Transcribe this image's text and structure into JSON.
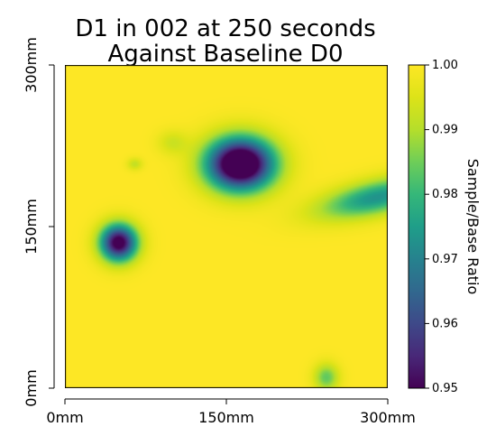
{
  "chart_data": {
    "type": "heatmap",
    "title": "D1 in 002 at 250 seconds",
    "subtitle": "Against Baseline D0",
    "xlabel": "",
    "ylabel": "",
    "x_ticks": [
      "0mm",
      "150mm",
      "300mm"
    ],
    "y_ticks": [
      "0mm",
      "150mm",
      "300mm"
    ],
    "x_tick_values": [
      0,
      150,
      300
    ],
    "y_tick_values": [
      0,
      150,
      300
    ],
    "xlim": [
      0,
      300
    ],
    "ylim": [
      0,
      300
    ],
    "colorbar": {
      "label": "Sample/Base Ratio",
      "min": 0.95,
      "max": 1.0,
      "ticks": [
        "0.95",
        "0.96",
        "0.97",
        "0.98",
        "0.99",
        "1.00"
      ],
      "tick_values": [
        0.95,
        0.96,
        0.97,
        0.98,
        0.99,
        1.0
      ],
      "colormap": "viridis"
    },
    "background_value": 1.0,
    "anomalies": [
      {
        "name": "upper-center-low",
        "x_mm": 163,
        "y_mm": 208,
        "min_value": 0.951
      },
      {
        "name": "left-low",
        "x_mm": 50,
        "y_mm": 135,
        "min_value": 0.96
      },
      {
        "name": "right-edge-band",
        "x_mm": 290,
        "y_mm": 177,
        "min_value": 0.98
      },
      {
        "name": "bottom-spot",
        "x_mm": 243,
        "y_mm": 10,
        "min_value": 0.988
      },
      {
        "name": "small-left-spot",
        "x_mm": 65,
        "y_mm": 208,
        "min_value": 0.994
      },
      {
        "name": "faint-upper-left",
        "x_mm": 100,
        "y_mm": 228,
        "min_value": 0.995
      }
    ]
  }
}
